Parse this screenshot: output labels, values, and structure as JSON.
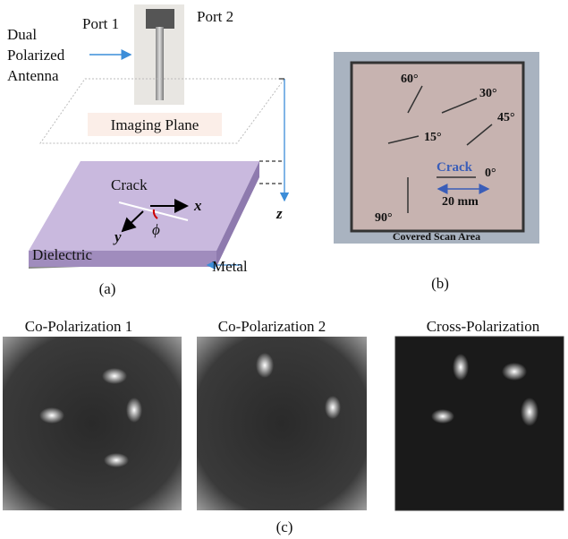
{
  "panel_a": {
    "port1": "Port 1",
    "port2": "Port 2",
    "antenna": [
      "Dual",
      "Polarized",
      "Antenna"
    ],
    "imaging_plane": "Imaging Plane",
    "crack": "Crack",
    "x_axis": "x",
    "y_axis": "y",
    "angle": "ϕ",
    "z_axis": "z",
    "dielectric": "Dielectric",
    "metal": "Metal",
    "caption": "(a)"
  },
  "panel_b": {
    "angles": [
      "60°",
      "30°",
      "45°",
      "15°",
      "0°",
      "90°"
    ],
    "crack": "Crack",
    "scale": "20 mm",
    "scan_area": "Covered Scan Area",
    "caption": "(b)"
  },
  "panel_c": {
    "titles": [
      "Co-Polarization 1",
      "Co-Polarization 2",
      "Cross-Polarization"
    ],
    "caption": "(c)"
  }
}
